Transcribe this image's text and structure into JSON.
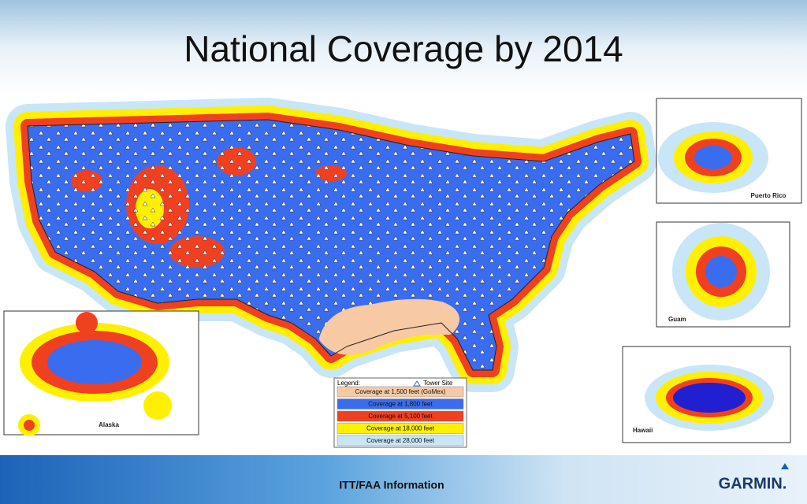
{
  "title": "National Coverage by 2014",
  "legend": {
    "title": "Legend:",
    "tower": "Tower Site",
    "items": [
      {
        "label": "Coverage at 1,500 feet (GoMex)",
        "color": "#f7c9a4"
      },
      {
        "label": "Coverage at 1,800 feet",
        "color": "#3a6cf0"
      },
      {
        "label": "Coverage at 5,100 feet",
        "color": "#f04020"
      },
      {
        "label": "Coverage at 18,000 feet",
        "color": "#ffef00"
      },
      {
        "label": "Coverage at 28,000 feet",
        "color": "#c8e6f8"
      }
    ]
  },
  "insets": {
    "puerto_rico": "Puerto Rico",
    "guam": "Guam",
    "hawaii": "Hawaii",
    "alaska": "Alaska"
  },
  "footer": {
    "text": "ITT/FAA Information",
    "logo": "GARMIN."
  }
}
